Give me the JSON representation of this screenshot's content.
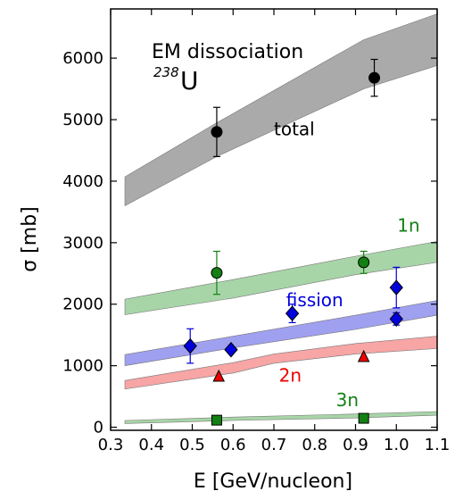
{
  "chart_data": {
    "type": "scatter",
    "title": "",
    "xlabel": "E  [GeV/nucleon]",
    "ylabel": "σ  [mb]",
    "xlim": [
      0.3,
      1.1
    ],
    "ylim": [
      -50,
      6800
    ],
    "xticks": [
      0.3,
      0.4,
      0.5,
      0.6,
      0.7,
      0.8,
      0.9,
      1.0,
      1.1
    ],
    "xtick_labels": [
      "0.3",
      "0.4",
      "0.5",
      "0.6",
      "0.7",
      "0.8",
      "0.9",
      "1.0",
      "1.1"
    ],
    "yticks": [
      0,
      1000,
      2000,
      3000,
      4000,
      5000,
      6000
    ],
    "ytick_labels": [
      "0",
      "1000",
      "2000",
      "3000",
      "4000",
      "5000",
      "6000"
    ],
    "grid": false,
    "annotations": {
      "heading": "EM dissociation",
      "isotope_mass": "238",
      "isotope_symbol": "U"
    },
    "series": [
      {
        "name": "total",
        "label_at": [
          0.75,
          4750
        ],
        "color": "#000000",
        "band_color": "#aaaaaa",
        "marker": "circle",
        "band": {
          "x": [
            0.335,
            0.56,
            0.92,
            1.1
          ],
          "lower": [
            3600,
            4400,
            5500,
            5880
          ],
          "upper": [
            4070,
            4950,
            6300,
            6720
          ]
        },
        "points": [
          {
            "x": 0.56,
            "y": 4800,
            "err": 400
          },
          {
            "x": 0.946,
            "y": 5680,
            "err": 300
          }
        ]
      },
      {
        "name": "1n",
        "label_at": [
          1.03,
          3180
        ],
        "color": "#138013",
        "band_color": "#a8d5a8",
        "marker": "circle",
        "band": {
          "x": [
            0.335,
            0.6,
            0.9,
            1.1
          ],
          "lower": [
            1830,
            2100,
            2480,
            2680
          ],
          "upper": [
            2080,
            2400,
            2780,
            3020
          ]
        },
        "points": [
          {
            "x": 0.56,
            "y": 2510,
            "err": 350
          },
          {
            "x": 0.92,
            "y": 2680,
            "err": 180
          }
        ]
      },
      {
        "name": "fission",
        "label_at": [
          0.8,
          1970
        ],
        "color": "#0000dd",
        "band_color": "#a0a0f0",
        "marker": "diamond",
        "band": {
          "x": [
            0.335,
            0.6,
            0.9,
            1.1
          ],
          "lower": [
            1000,
            1290,
            1590,
            1820
          ],
          "upper": [
            1180,
            1480,
            1820,
            2060
          ]
        },
        "points": [
          {
            "x": 0.495,
            "y": 1320,
            "err": 280
          },
          {
            "x": 0.595,
            "y": 1260,
            "err": 50
          },
          {
            "x": 0.745,
            "y": 1850,
            "err": 150
          },
          {
            "x": 1.0,
            "y": 2270,
            "err": 330
          },
          {
            "x": 1.0,
            "y": 1760,
            "err": 100
          }
        ]
      },
      {
        "name": "2n",
        "label_at": [
          0.74,
          740
        ],
        "color": "#ee0000",
        "band_color": "#f7a5a5",
        "marker": "triangle",
        "band": {
          "x": [
            0.335,
            0.6,
            0.7,
            0.9,
            1.1
          ],
          "lower": [
            620,
            880,
            1040,
            1190,
            1280
          ],
          "upper": [
            760,
            1050,
            1190,
            1360,
            1480
          ]
        },
        "points": [
          {
            "x": 0.565,
            "y": 820,
            "err": 0
          },
          {
            "x": 0.92,
            "y": 1140,
            "err": 0
          }
        ]
      },
      {
        "name": "3n",
        "label_at": [
          0.88,
          340
        ],
        "color": "#138013",
        "band_color": "#a8d5a8",
        "marker": "square",
        "band": {
          "x": [
            0.335,
            0.6,
            0.9,
            1.1
          ],
          "lower": [
            60,
            110,
            150,
            195
          ],
          "upper": [
            110,
            165,
            215,
            255
          ]
        },
        "points": [
          {
            "x": 0.56,
            "y": 115,
            "err": 0
          },
          {
            "x": 0.92,
            "y": 145,
            "err": 0
          }
        ]
      }
    ]
  }
}
